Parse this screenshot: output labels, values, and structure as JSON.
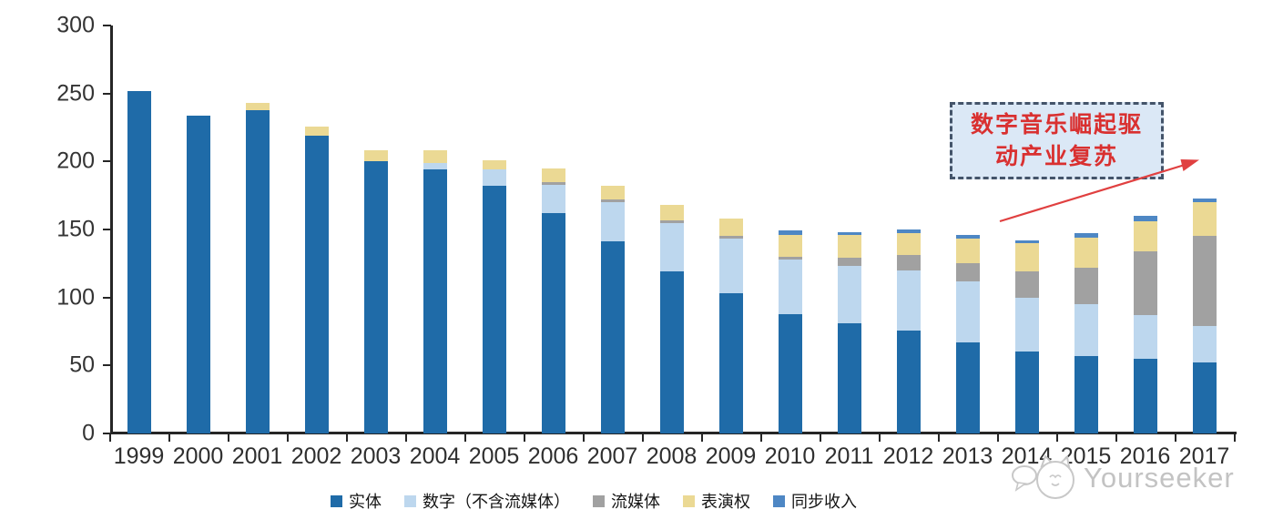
{
  "watermark": {
    "text": "Yourseeker"
  },
  "annotation": {
    "line1": "数字音乐崛起驱",
    "line2": "动产业复苏",
    "text_color": "#D93030",
    "box_fill": "#DBE8F6",
    "box_border": "#44546A",
    "arrow_color": "#E04040"
  },
  "chart_data": {
    "type": "bar",
    "stacked": true,
    "title": "",
    "xlabel": "",
    "ylabel": "",
    "ylim": [
      0,
      300
    ],
    "y_ticks": [
      0,
      50,
      100,
      150,
      200,
      250,
      300
    ],
    "grid": false,
    "legend_position": "bottom",
    "categories": [
      "1999",
      "2000",
      "2001",
      "2002",
      "2003",
      "2004",
      "2005",
      "2006",
      "2007",
      "2008",
      "2009",
      "2010",
      "2011",
      "2012",
      "2013",
      "2014",
      "2015",
      "2016",
      "2017"
    ],
    "series": [
      {
        "key": "physical",
        "name": "实体",
        "color": "#1F6BA8",
        "values": [
          252,
          234,
          238,
          219,
          200,
          194,
          182,
          162,
          141,
          119,
          103,
          88,
          81,
          76,
          67,
          60,
          57,
          55,
          52
        ]
      },
      {
        "key": "digital-ex-streaming",
        "name": "数字（不含流媒体）",
        "color": "#BDD7EE",
        "values": [
          0,
          0,
          0,
          0,
          0,
          5,
          12,
          21,
          29,
          36,
          40,
          40,
          42,
          44,
          45,
          40,
          38,
          32,
          27
        ]
      },
      {
        "key": "streaming",
        "name": "流媒体",
        "color": "#A1A1A1",
        "values": [
          0,
          0,
          0,
          0,
          0,
          0,
          0,
          2,
          2,
          2,
          2,
          2,
          6,
          11,
          13,
          19,
          27,
          47,
          66
        ]
      },
      {
        "key": "performance-rights",
        "name": "表演权",
        "color": "#EBD994",
        "values": [
          0,
          0,
          5,
          7,
          8,
          9,
          7,
          10,
          10,
          11,
          13,
          16,
          17,
          16,
          18,
          21,
          22,
          22,
          25
        ]
      },
      {
        "key": "sync-revenue",
        "name": "同步收入",
        "color": "#4E87C4",
        "values": [
          0,
          0,
          0,
          0,
          0,
          0,
          0,
          0,
          0,
          0,
          0,
          3,
          2,
          3,
          3,
          2,
          3,
          4,
          3
        ]
      }
    ]
  }
}
